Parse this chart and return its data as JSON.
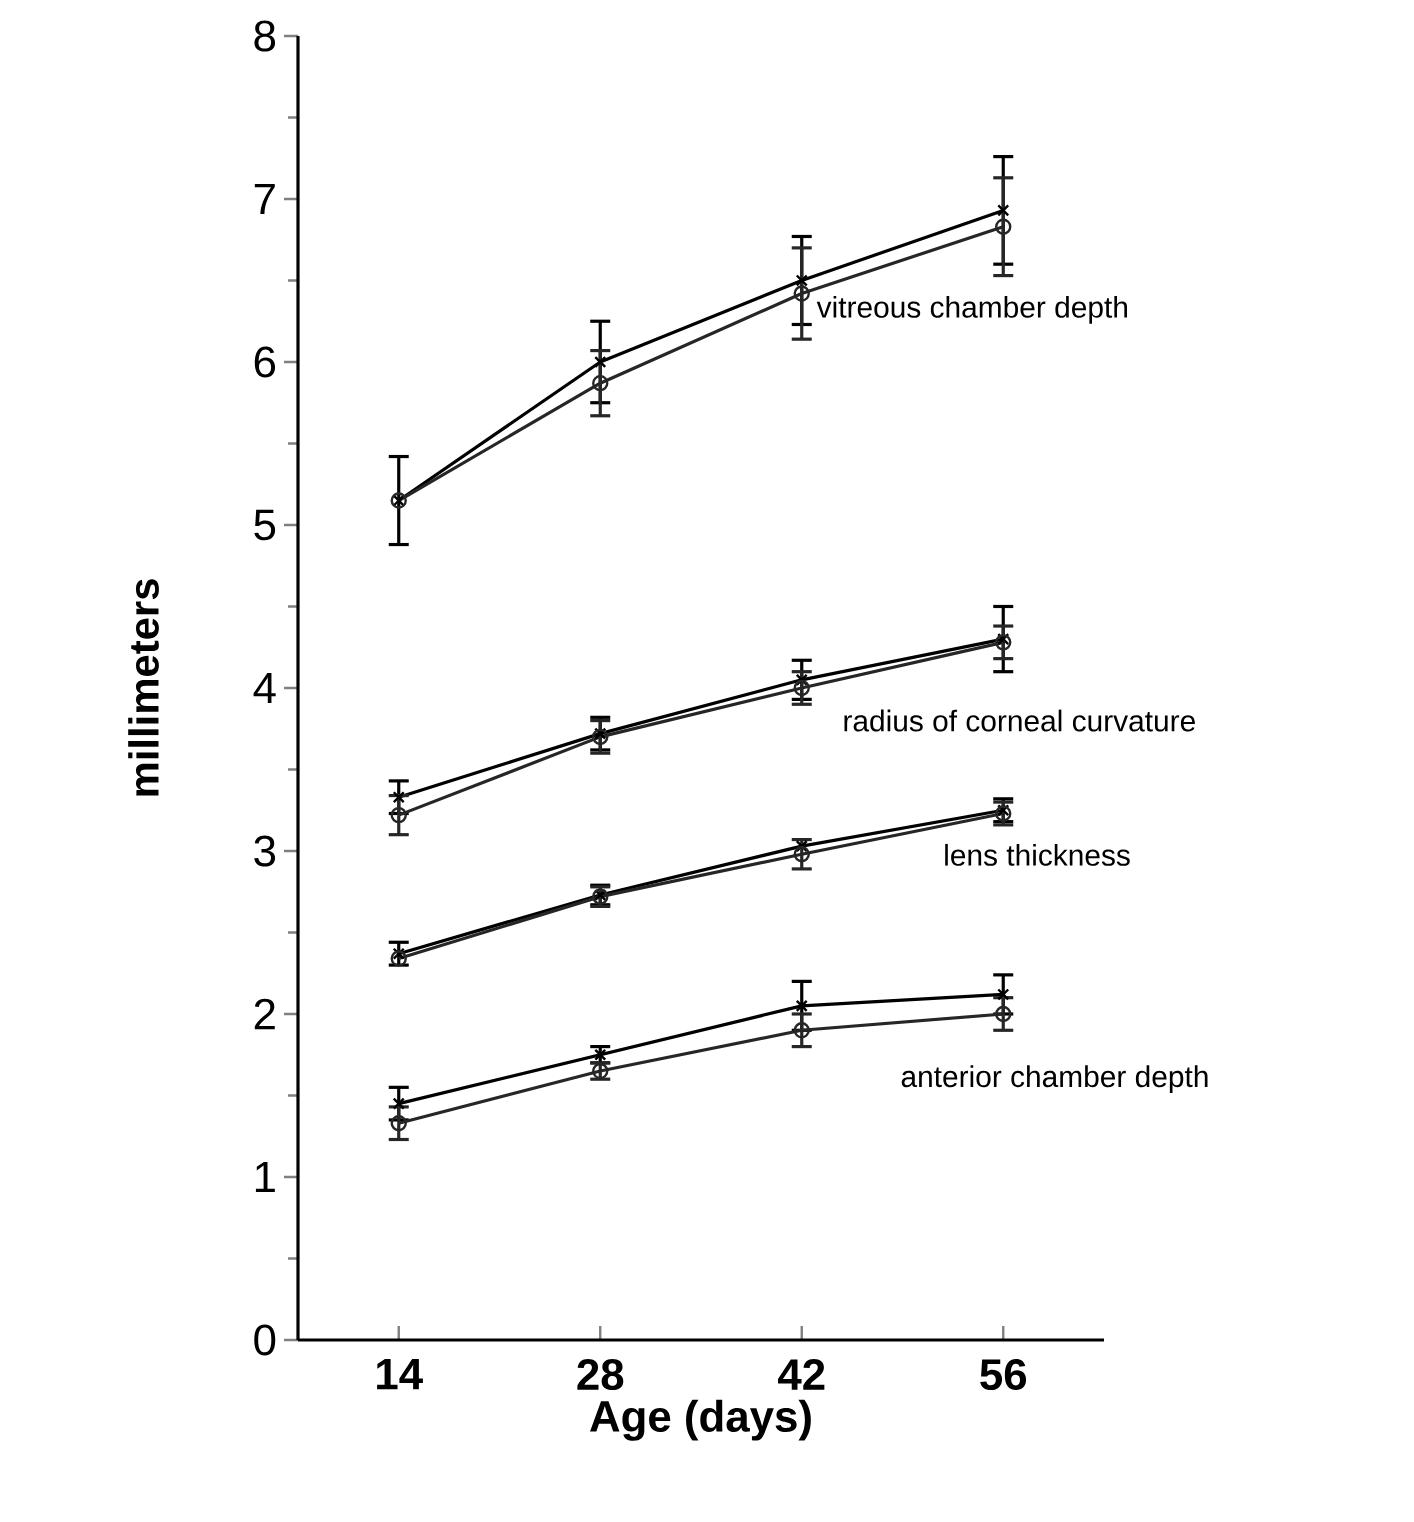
{
  "chart_data": {
    "type": "line",
    "xlabel": "Age  (days)",
    "ylabel": "millimeters",
    "x": [
      14,
      28,
      42,
      56
    ],
    "xlim": [
      7,
      63
    ],
    "ylim": [
      0,
      8
    ],
    "xticks": [
      14,
      28,
      42,
      56
    ],
    "yticks": [
      0,
      1,
      2,
      3,
      4,
      5,
      6,
      7,
      8
    ],
    "line_style": "solid",
    "series": [
      {
        "color": "#000000",
        "marker": "cross",
        "values": [
          5.15,
          6.0,
          6.5,
          6.93
        ],
        "errors": [
          0.27,
          0.25,
          0.27,
          0.33
        ]
      },
      {
        "color": "#262626",
        "marker": "circle",
        "values": [
          5.15,
          5.87,
          6.42,
          6.83
        ],
        "errors": [
          null,
          0.2,
          0.28,
          0.3
        ]
      },
      {
        "color": "#000000",
        "marker": "cross",
        "values": [
          3.33,
          3.72,
          4.05,
          4.3
        ],
        "errors": [
          0.1,
          0.1,
          0.12,
          0.2
        ]
      },
      {
        "color": "#262626",
        "marker": "circle",
        "values": [
          3.22,
          3.7,
          4.0,
          4.28
        ],
        "errors": [
          0.12,
          0.1,
          0.1,
          0.1
        ]
      },
      {
        "color": "#000000",
        "marker": "cross",
        "values": [
          2.37,
          2.73,
          3.03,
          3.25
        ],
        "errors": [
          0.07,
          0.06,
          null,
          0.07
        ]
      },
      {
        "color": "#262626",
        "marker": "circle",
        "values": [
          2.34,
          2.72,
          2.98,
          3.23
        ],
        "errors": [
          null,
          0.06,
          0.09,
          0.07
        ]
      },
      {
        "color": "#000000",
        "marker": "cross",
        "values": [
          1.45,
          1.75,
          2.05,
          2.12
        ],
        "errors": [
          0.1,
          0.05,
          0.15,
          0.12
        ]
      },
      {
        "color": "#262626",
        "marker": "circle",
        "values": [
          1.33,
          1.65,
          1.9,
          2.0
        ],
        "errors": [
          0.1,
          0.05,
          0.1,
          0.1
        ]
      }
    ],
    "annotations": [
      "vitreous chamber depth",
      "radius of corneal curvature",
      "lens thickness",
      "anterior chamber depth"
    ]
  }
}
